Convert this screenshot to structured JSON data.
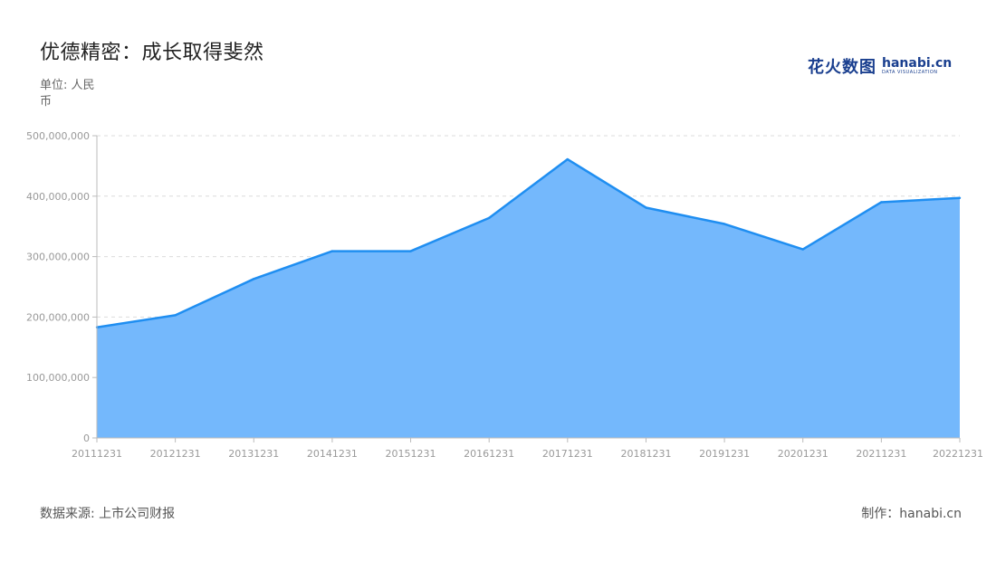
{
  "header": {
    "title": "优德精密：成长取得斐然",
    "unit": "单位: 人民币"
  },
  "brand": {
    "cn": "花火数图",
    "en": "hanabi.cn",
    "sub": "DATA VISUALIZATION",
    "color": "#1a3f8f"
  },
  "footer": {
    "source": "数据来源: 上市公司财报",
    "credit": "制作：hanabi.cn"
  },
  "chart_data": {
    "type": "area",
    "categories": [
      "20111231",
      "20121231",
      "20131231",
      "20141231",
      "20151231",
      "20161231",
      "20171231",
      "20181231",
      "20191231",
      "20201231",
      "20211231",
      "20221231"
    ],
    "series": [
      {
        "values": [
          183000000,
          203000000,
          263000000,
          309000000,
          309000000,
          364000000,
          461000000,
          381000000,
          354000000,
          312000000,
          390000000,
          397000000
        ]
      }
    ],
    "ylim": [
      0,
      500000000
    ],
    "yticks": [
      "0",
      "100,000,000",
      "200,000,000",
      "300,000,000",
      "400,000,000",
      "500,000,000"
    ],
    "grid": true,
    "line_color": "#1f8ef1",
    "fill_color": "#74b8fc"
  }
}
